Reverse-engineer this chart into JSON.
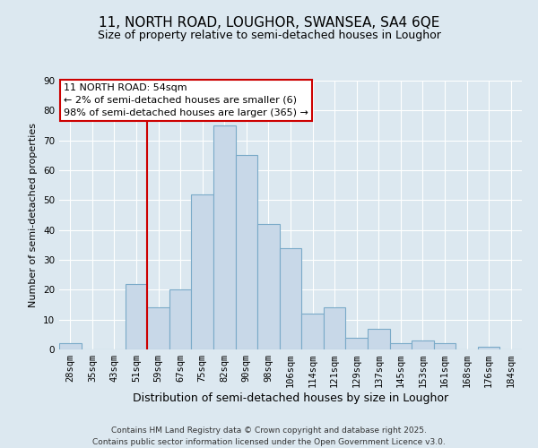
{
  "title": "11, NORTH ROAD, LOUGHOR, SWANSEA, SA4 6QE",
  "subtitle": "Size of property relative to semi-detached houses in Loughor",
  "xlabel": "Distribution of semi-detached houses by size in Loughor",
  "ylabel": "Number of semi-detached properties",
  "bar_labels": [
    "28sqm",
    "35sqm",
    "43sqm",
    "51sqm",
    "59sqm",
    "67sqm",
    "75sqm",
    "82sqm",
    "90sqm",
    "98sqm",
    "106sqm",
    "114sqm",
    "121sqm",
    "129sqm",
    "137sqm",
    "145sqm",
    "153sqm",
    "161sqm",
    "168sqm",
    "176sqm",
    "184sqm"
  ],
  "bar_values": [
    2,
    0,
    0,
    22,
    14,
    20,
    52,
    75,
    65,
    42,
    34,
    12,
    14,
    4,
    7,
    2,
    3,
    2,
    0,
    1,
    0
  ],
  "bar_color": "#c8d8e8",
  "bar_edge_color": "#7aaac8",
  "background_color": "#dce8f0",
  "plot_bg_color": "#dce8f0",
  "ylim": [
    0,
    90
  ],
  "yticks": [
    0,
    10,
    20,
    30,
    40,
    50,
    60,
    70,
    80,
    90
  ],
  "vline_x": 3.5,
  "vline_color": "#cc0000",
  "annotation_line1": "11 NORTH ROAD: 54sqm",
  "annotation_line2": "← 2% of semi-detached houses are smaller (6)",
  "annotation_line3": "98% of semi-detached houses are larger (365) →",
  "annotation_box_color": "#ffffff",
  "annotation_box_edge": "#cc0000",
  "footer_line1": "Contains HM Land Registry data © Crown copyright and database right 2025.",
  "footer_line2": "Contains public sector information licensed under the Open Government Licence v3.0.",
  "title_fontsize": 11,
  "subtitle_fontsize": 9,
  "xlabel_fontsize": 9,
  "ylabel_fontsize": 8,
  "tick_fontsize": 7.5,
  "annotation_fontsize": 8,
  "footer_fontsize": 6.5,
  "grid_color": "#ffffff"
}
